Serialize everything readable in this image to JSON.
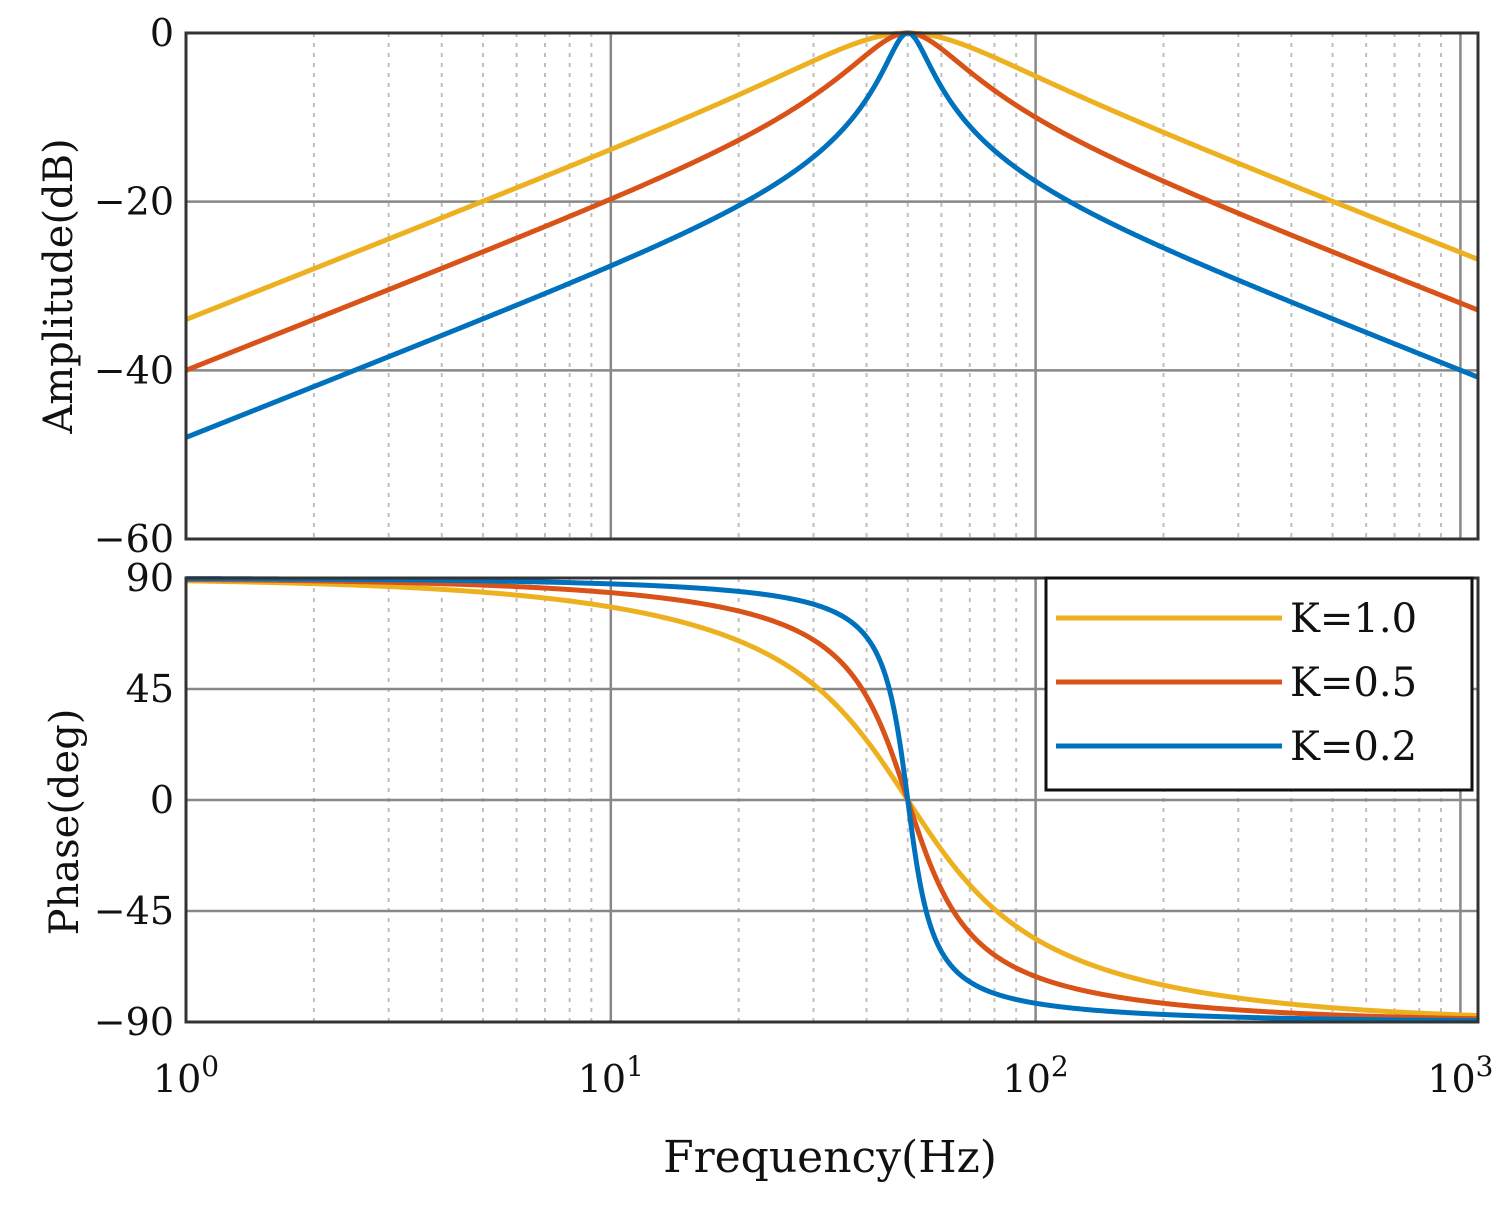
{
  "colors": {
    "k10": "#EDB120",
    "k05": "#D95319",
    "k02": "#0072BD",
    "grid_major": "#888888",
    "grid_minor": "#bfbfbf",
    "axis": "#333333"
  },
  "chart_data": [
    {
      "id": "amplitude",
      "type": "line",
      "title": "",
      "xlabel": "",
      "ylabel": "Amplitude(dB)",
      "xscale": "log",
      "xlim": [
        1,
        1100
      ],
      "ylim": [
        -60,
        0
      ],
      "yticks": [
        0,
        -20,
        -40,
        -60
      ],
      "ytick_labels": [
        "0",
        "−20",
        "−40",
        "−60"
      ],
      "grid": true,
      "model": "20*log10(|K*j*w*w0/(w0^2 - w^2 + K*j*w*w0)|), f0 = 50 Hz",
      "f0": 50,
      "series": [
        {
          "name": "K=1.0",
          "K": 1.0,
          "color": "#EDB120",
          "x": [
            1,
            2,
            5,
            10,
            20,
            30,
            40,
            50,
            70,
            100,
            200,
            500,
            1100
          ],
          "y": [
            -33.98,
            -27.94,
            -19.91,
            -13.63,
            -6.56,
            -2.71,
            -0.71,
            0,
            -1.32,
            -4.93,
            -11.72,
            -20.04,
            -26.84
          ]
        },
        {
          "name": "K=0.5",
          "K": 0.5,
          "color": "#D95319",
          "x": [
            1,
            2,
            5,
            10,
            20,
            30,
            40,
            50,
            70,
            100,
            200,
            500,
            1100
          ],
          "y": [
            -40.0,
            -33.96,
            -25.87,
            -19.35,
            -11.74,
            -7.11,
            -3.14,
            0,
            -4.52,
            -9.92,
            -17.59,
            -26.02,
            -32.85
          ]
        },
        {
          "name": "K=0.2",
          "K": 0.2,
          "color": "#0072BD",
          "x": [
            1,
            2,
            5,
            10,
            20,
            30,
            40,
            50,
            70,
            100,
            200,
            500,
            1100
          ],
          "y": [
            -53.98,
            -47.93,
            -39.85,
            -33.25,
            -25.39,
            -20.31,
            -14.06,
            0,
            -15.53,
            -23.04,
            -31.49,
            -39.96,
            -46.82
          ]
        }
      ]
    },
    {
      "id": "phase",
      "type": "line",
      "title": "",
      "xlabel": "Frequency(Hz)",
      "ylabel": "Phase(deg)",
      "xscale": "log",
      "xlim": [
        1,
        1100
      ],
      "ylim": [
        -90,
        90
      ],
      "yticks": [
        90,
        45,
        0,
        -45,
        -90
      ],
      "ytick_labels": [
        "90",
        "45",
        "0",
        "−45",
        "−90"
      ],
      "xtick_values": [
        1,
        10,
        100,
        1000
      ],
      "xtick_bases": [
        "10",
        "10",
        "10",
        "10"
      ],
      "xtick_exps": [
        "0",
        "1",
        "2",
        "3"
      ],
      "grid": true,
      "legend_position": "top-right",
      "series": [
        {
          "name": "K=1.0",
          "K": 1.0,
          "color": "#EDB120",
          "x": [
            1,
            2,
            5,
            10,
            20,
            30,
            40,
            50,
            70,
            100,
            200,
            500,
            1100
          ],
          "y": [
            88.9,
            87.7,
            84.2,
            78.2,
            64.5,
            49.8,
            32.9,
            0,
            -44.8,
            -56.3,
            -75.1,
            -84.2,
            -87.4
          ]
        },
        {
          "name": "K=0.5",
          "K": 0.5,
          "color": "#D95319",
          "x": [
            1,
            2,
            5,
            10,
            20,
            30,
            40,
            50,
            70,
            100,
            200,
            500,
            1100
          ],
          "y": [
            89.4,
            88.8,
            87.1,
            84.1,
            75.7,
            62.5,
            42.7,
            0,
            -52.9,
            -71.4,
            -82.4,
            -87.1,
            -88.7
          ]
        },
        {
          "name": "K=0.2",
          "K": 0.2,
          "color": "#0072BD",
          "x": [
            1,
            2,
            5,
            10,
            20,
            30,
            40,
            50,
            70,
            100,
            200,
            500,
            1100
          ],
          "y": [
            89.8,
            89.5,
            88.8,
            87.6,
            84.5,
            80.6,
            72.9,
            0,
            -79.3,
            -85.0,
            -87.0,
            -88.8,
            -89.5
          ]
        }
      ]
    }
  ]
}
